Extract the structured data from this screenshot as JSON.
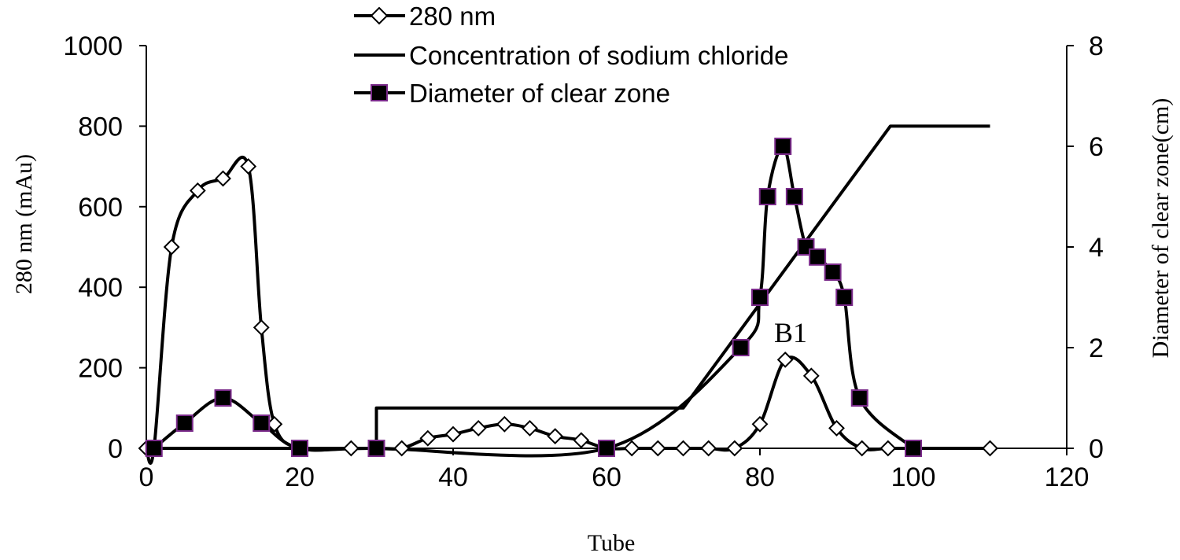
{
  "chart_data": {
    "type": "line",
    "xlabel": "Tube",
    "ylabel": "280 nm (mAu)",
    "y2label": "Diameter of clear zone(cm)",
    "xlim": [
      0,
      120
    ],
    "ylim": [
      0,
      1000
    ],
    "y2lim": [
      0,
      8
    ],
    "x_ticks": [
      0,
      20,
      40,
      60,
      80,
      100,
      120
    ],
    "y_ticks": [
      0,
      200,
      400,
      600,
      800,
      1000
    ],
    "y2_ticks": [
      0,
      2,
      4,
      6,
      8
    ],
    "grid": false,
    "legend_position": "top-center",
    "series": [
      {
        "name": "280 nm",
        "axis": "left",
        "marker": "open-diamond",
        "x": [
          0,
          1,
          3.3,
          6.7,
          10,
          13.3,
          15,
          16.7,
          20,
          26.7,
          30,
          33.3,
          36.7,
          40,
          43.3,
          46.7,
          50,
          53.3,
          56.7,
          60,
          63.3,
          66.7,
          70,
          73.3,
          76.7,
          80,
          83.3,
          86.7,
          90,
          93.3,
          96.7,
          100,
          110
        ],
        "values": [
          0,
          0,
          500,
          640,
          670,
          700,
          300,
          60,
          0,
          0,
          0,
          0,
          25,
          35,
          50,
          60,
          50,
          30,
          20,
          0,
          0,
          0,
          0,
          0,
          0,
          60,
          220,
          180,
          50,
          0,
          0,
          0,
          0
        ]
      },
      {
        "name": "Concentration of sodium chloride",
        "axis": "none",
        "marker": "none",
        "x": [
          1,
          30,
          30,
          70,
          97,
          110
        ],
        "values": [
          0,
          0,
          100,
          100,
          800,
          800
        ]
      },
      {
        "name": "Diameter of clear zone",
        "axis": "right",
        "marker": "filled-square",
        "x": [
          1,
          5,
          10,
          15,
          20,
          30,
          60,
          77.5,
          80,
          81,
          83,
          84.5,
          86,
          87.5,
          89.5,
          91,
          93,
          100
        ],
        "values": [
          0,
          0.5,
          1.0,
          0.5,
          0,
          0,
          0,
          2.0,
          3.0,
          5.0,
          6.0,
          5.0,
          4.0,
          3.8,
          3.5,
          3.0,
          1.0,
          0
        ]
      }
    ],
    "annotations": [
      {
        "text": "B1",
        "x": 84,
        "y": 2.3,
        "axis": "right"
      }
    ]
  }
}
